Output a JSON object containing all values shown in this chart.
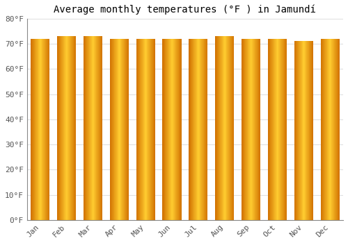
{
  "title": "Average monthly temperatures (°F ) in Jamundí",
  "months": [
    "Jan",
    "Feb",
    "Mar",
    "Apr",
    "May",
    "Jun",
    "Jul",
    "Aug",
    "Sep",
    "Oct",
    "Nov",
    "Dec"
  ],
  "values": [
    72,
    73,
    73,
    72,
    72,
    72,
    72,
    73,
    72,
    72,
    71,
    72
  ],
  "ylim": [
    0,
    80
  ],
  "yticks": [
    0,
    10,
    20,
    30,
    40,
    50,
    60,
    70,
    80
  ],
  "bar_color_center": "#FFB300",
  "bar_color_edge": "#E07800",
  "background_color": "#ffffff",
  "grid_color": "#e0e0e0",
  "title_fontsize": 10,
  "tick_fontsize": 8,
  "font_family": "monospace",
  "bar_width": 0.72
}
